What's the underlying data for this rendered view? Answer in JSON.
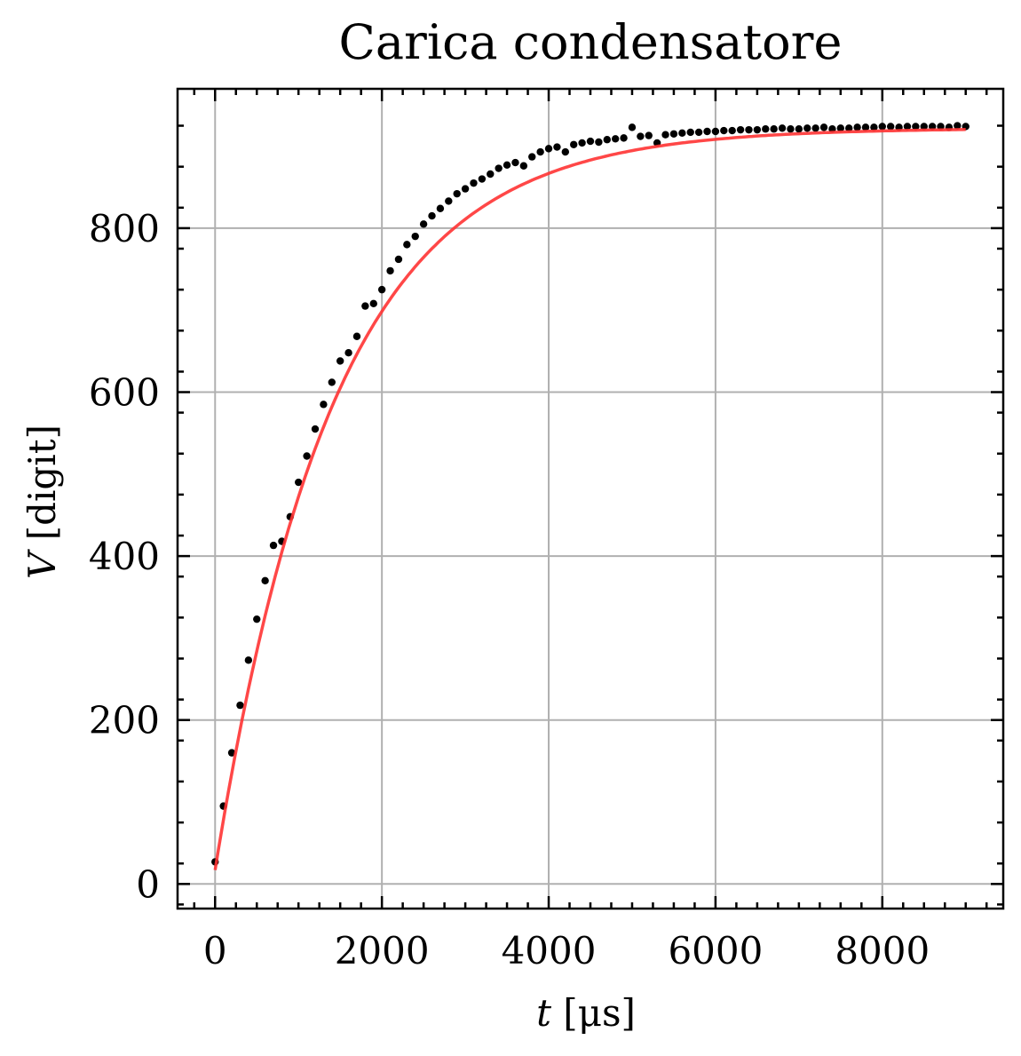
{
  "chart_data": {
    "type": "scatter",
    "title": "Carica condensatore",
    "xlabel_italic": "t",
    "xlabel_rest": " [μs]",
    "ylabel_italic": "V",
    "ylabel_rest": " [digit]",
    "xlim": [
      -450,
      9450
    ],
    "ylim": [
      -30,
      970
    ],
    "xticks": [
      0,
      2000,
      4000,
      6000,
      8000
    ],
    "xtick_labels": [
      "0",
      "2000",
      "4000",
      "6000",
      "8000"
    ],
    "yticks": [
      0,
      200,
      400,
      600,
      800
    ],
    "ytick_labels": [
      "0",
      "200",
      "400",
      "600",
      "800"
    ],
    "grid": true,
    "series": [
      {
        "kind": "points",
        "color": "#000000",
        "x": [
          0,
          100,
          200,
          300,
          400,
          500,
          600,
          700,
          800,
          900,
          1000,
          1100,
          1200,
          1300,
          1400,
          1500,
          1600,
          1700,
          1800,
          1900,
          2000,
          2100,
          2200,
          2300,
          2400,
          2500,
          2600,
          2700,
          2800,
          2900,
          3000,
          3100,
          3200,
          3300,
          3400,
          3500,
          3600,
          3700,
          3800,
          3900,
          4000,
          4100,
          4200,
          4300,
          4400,
          4500,
          4600,
          4700,
          4800,
          4900,
          5000,
          5100,
          5200,
          5300,
          5400,
          5500,
          5600,
          5700,
          5800,
          5900,
          6000,
          6100,
          6200,
          6300,
          6400,
          6500,
          6600,
          6700,
          6800,
          6900,
          7000,
          7100,
          7200,
          7300,
          7400,
          7500,
          7600,
          7700,
          7800,
          7900,
          8000,
          8100,
          8200,
          8300,
          8400,
          8500,
          8600,
          8700,
          8800,
          8900,
          9000
        ],
        "y": [
          27,
          95,
          160,
          218,
          273,
          323,
          370,
          413,
          418,
          448,
          490,
          522,
          555,
          585,
          612,
          638,
          648,
          668,
          705,
          708,
          725,
          748,
          762,
          780,
          790,
          805,
          815,
          824,
          833,
          842,
          848,
          855,
          860,
          866,
          873,
          877,
          880,
          876,
          887,
          893,
          897,
          899,
          893,
          902,
          904,
          906,
          905,
          908,
          909,
          910,
          923,
          912,
          913,
          904,
          914,
          915,
          916,
          917,
          917,
          918,
          918,
          919,
          919,
          920,
          920,
          920,
          921,
          921,
          922,
          921,
          921,
          922,
          922,
          923,
          921,
          922,
          922,
          923,
          923,
          923,
          924,
          924,
          923,
          924,
          924,
          924,
          924,
          924,
          923,
          925,
          924
        ]
      },
      {
        "kind": "fit",
        "color": "#ff3333",
        "model": "V0 * (1 - exp(-t / tau)) + c",
        "V0": 905,
        "tau": 1430,
        "c": 17
      }
    ]
  }
}
